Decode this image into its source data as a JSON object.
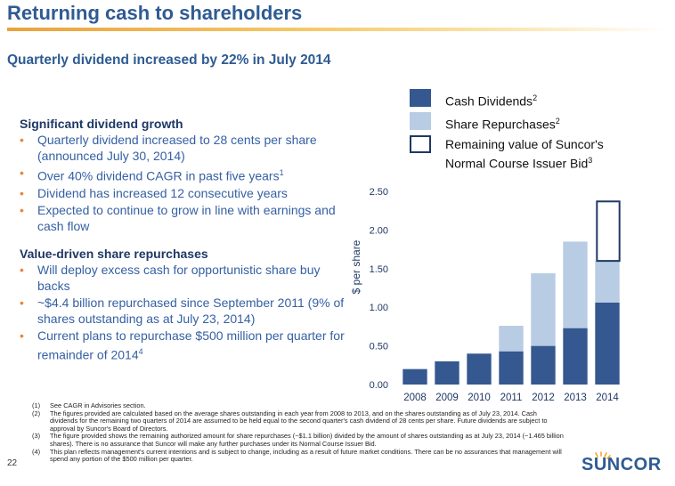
{
  "header": {
    "title": "Returning cash to shareholders",
    "subtitle": "Quarterly dividend increased by 22% in July 2014"
  },
  "sections": [
    {
      "heading": "Significant dividend growth",
      "bullets": [
        "Quarterly dividend increased to 28 cents per share (announced July 30, 2014)",
        "Over 40% dividend CAGR in past five years",
        "Dividend has increased 12 consecutive years",
        "Expected to continue to grow in line with earnings and cash flow"
      ],
      "bullet_sup": [
        "",
        "1",
        "",
        ""
      ]
    },
    {
      "heading": "Value-driven share repurchases",
      "bullets": [
        "Will deploy excess cash for opportunistic share buy backs",
        "~$4.4 billion repurchased since September 2011 (9% of shares outstanding as at July 23, 2014)",
        "Current plans to repurchase $500 million per quarter for remainder of 2014"
      ],
      "bullet_sup": [
        "",
        "",
        "4"
      ]
    }
  ],
  "legend": {
    "items": [
      {
        "label": "Cash Dividends",
        "sup": "2",
        "color": "#34588f"
      },
      {
        "label": "Share Repurchases",
        "sup": "2",
        "color": "#b8cce4"
      },
      {
        "label": "Remaining value of Suncor's Normal Course Issuer Bid",
        "sup": "3",
        "color": "#ffffff"
      }
    ]
  },
  "chart_data": {
    "type": "bar",
    "stacked": true,
    "categories": [
      "2008",
      "2009",
      "2010",
      "2011",
      "2012",
      "2013",
      "2014"
    ],
    "series": [
      {
        "name": "Cash Dividends",
        "color": "#34588f",
        "values": [
          0.2,
          0.3,
          0.4,
          0.43,
          0.5,
          0.73,
          1.06
        ]
      },
      {
        "name": "Share Repurchases",
        "color": "#b8cce4",
        "values": [
          0,
          0,
          0,
          0.33,
          0.94,
          1.12,
          0.54
        ]
      },
      {
        "name": "Remaining value of Suncor's Normal Course Issuer Bid",
        "color": "#ffffff",
        "values": [
          0,
          0,
          0,
          0,
          0,
          0,
          0.77
        ]
      }
    ],
    "ylabel": "$ per share",
    "ylim": [
      0,
      2.5
    ],
    "yticks": [
      "0.00",
      "0.50",
      "1.00",
      "1.50",
      "2.00",
      "2.50"
    ],
    "ytick_values": [
      0,
      0.5,
      1.0,
      1.5,
      2.0,
      2.5
    ]
  },
  "footnotes": [
    {
      "n": "(1)",
      "text": "See CAGR in Advisories section."
    },
    {
      "n": "(2)",
      "text": "The figures provided are calculated based on the average shares outstanding in each year from 2008 to 2013, and on the shares outstanding as of July 23, 2014. Cash dividends for the remaining two quarters of 2014 are assumed to be held equal to the second quarter's cash dividend of 28 cents per share. Future dividends are subject to approval by Suncor's Board of Directors."
    },
    {
      "n": "(3)",
      "text": "The figure provided shows the remaining authorized amount for share repurchases (~$1.1 billion) divided by the amount of shares outstanding as at July 23, 2014 (~1.465 billion shares). There is no assurance that Suncor will make any further purchases under its Normal Course Issuer Bid."
    },
    {
      "n": "(4)",
      "text": "This plan reflects management's current intentions and is subject to change, including as a result of future market conditions. There can be no assurances that management will spend any portion of the $500 million per quarter."
    }
  ],
  "footer": {
    "page_number": "22",
    "logo_text": "SUNCOR",
    "logo_color": "#2f5b93",
    "logo_accent": "#f5a623"
  }
}
